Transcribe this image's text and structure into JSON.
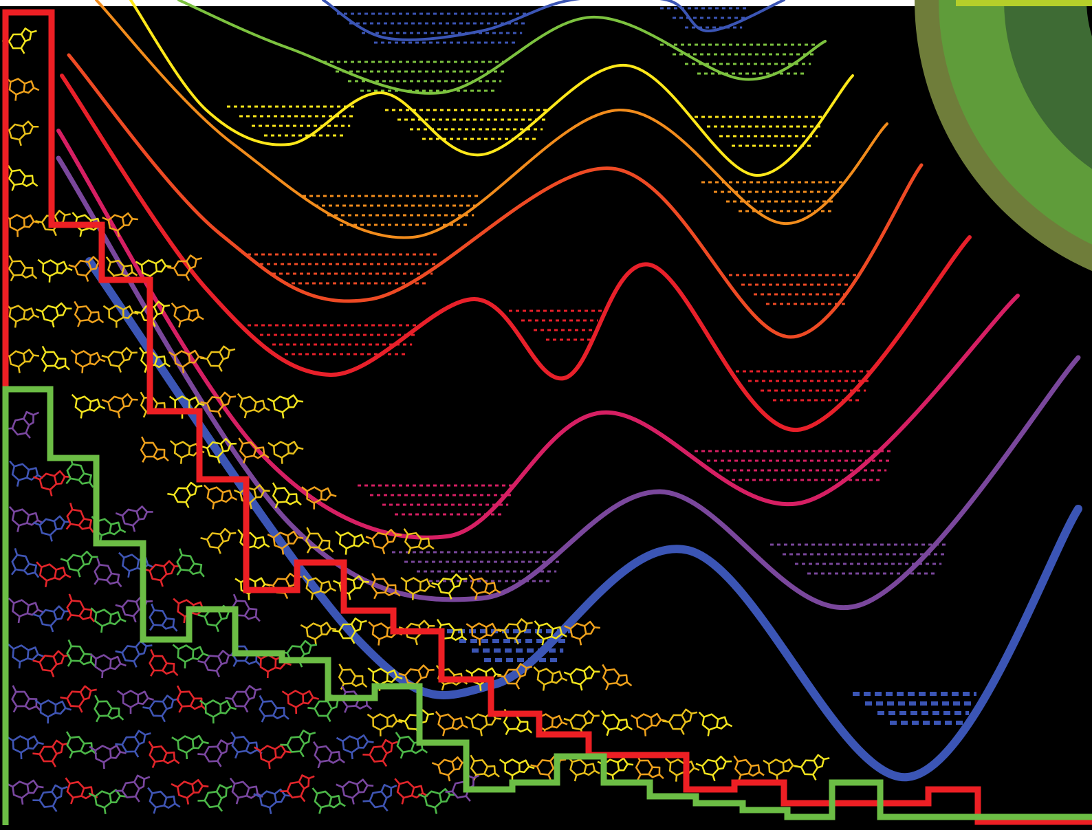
{
  "artwork": {
    "background_color": "#000000",
    "top_strip_color": "#ffffff",
    "potential_curves": [
      {
        "color": "#3b55b5",
        "name": "curve-blue-top"
      },
      {
        "color": "#7cc23f",
        "name": "curve-green"
      },
      {
        "color": "#ffe81a",
        "name": "curve-yellow"
      },
      {
        "color": "#f28c1c",
        "name": "curve-orange"
      },
      {
        "color": "#ee4a24",
        "name": "curve-red-orange"
      },
      {
        "color": "#e8202a",
        "name": "curve-red"
      },
      {
        "color": "#d61f63",
        "name": "curve-magenta"
      },
      {
        "color": "#7a479c",
        "name": "curve-purple"
      },
      {
        "color": "#3b55b5",
        "name": "curve-blue-bottom"
      }
    ],
    "staircase_red_color": "#ed1f24",
    "staircase_green_color": "#6cbd45",
    "molecule_warm_colors": [
      "#f2e41e",
      "#f0a21c",
      "#e8c01a"
    ],
    "molecule_cool_colors": [
      "#7a47a0",
      "#3f55b4",
      "#e2252a",
      "#4cb748"
    ],
    "corner_arc_colors": [
      "#6f7d3a",
      "#5f9c3a",
      "#3e6b34",
      "#b5cf2a"
    ]
  }
}
